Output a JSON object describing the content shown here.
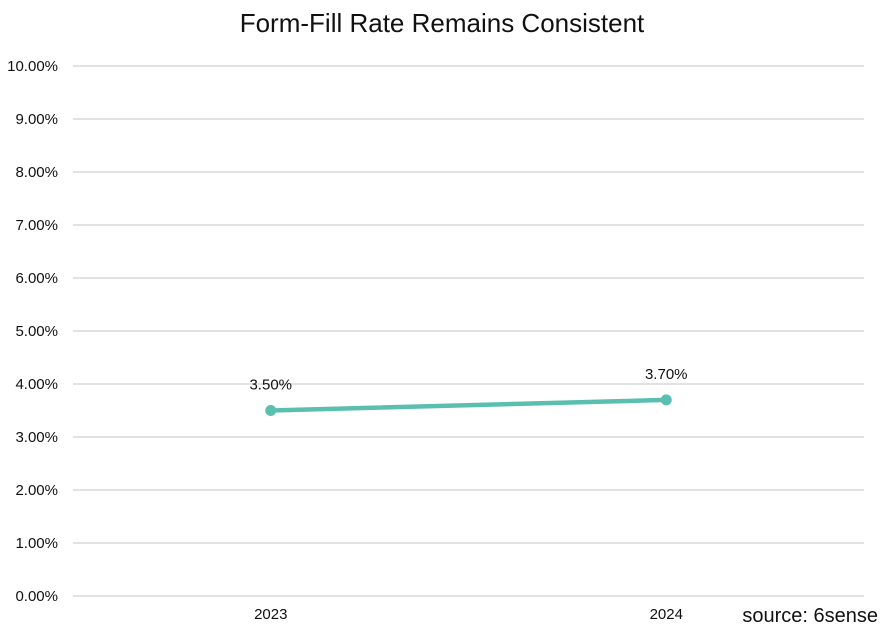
{
  "chart_data": {
    "type": "line",
    "title": "Form-Fill Rate Remains Consistent",
    "categories": [
      "2023",
      "2024"
    ],
    "series": [
      {
        "values": [
          3.5,
          3.7
        ],
        "data_labels": [
          "3.50%",
          "3.70%"
        ],
        "color": "#5bbfb0"
      }
    ],
    "xlabel": "",
    "ylabel": "",
    "ylim": [
      0,
      10
    ],
    "yticks": [
      0,
      1,
      2,
      3,
      4,
      5,
      6,
      7,
      8,
      9,
      10
    ],
    "ytick_labels": [
      "0.00%",
      "1.00%",
      "2.00%",
      "3.00%",
      "4.00%",
      "5.00%",
      "6.00%",
      "7.00%",
      "8.00%",
      "9.00%",
      "10.00%"
    ],
    "grid": true,
    "gridline_color": "#d0d0d0",
    "legend": "none"
  },
  "source_note": "source: 6sense"
}
